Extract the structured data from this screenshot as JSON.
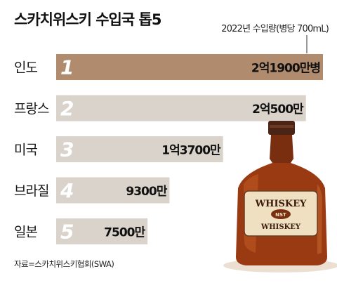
{
  "header": {
    "title": "스카치위스키 수입국 톱5",
    "subtitle": "2022년 수입량(병당 700mL)"
  },
  "source": "자료=스카치위스키협회(SWA)",
  "colors": {
    "highlight_bar": "#b08b6d",
    "default_bar": "#dad3cb",
    "rank_number": "#ffffff",
    "value_text": "#111111",
    "bottle_glass": "#9a3a12",
    "bottle_cap": "#4a2515",
    "label_paper": "#efe0c2"
  },
  "illustration": {
    "label_top": "WHISKEY",
    "label_badge": "NST",
    "label_bottom": "WHISKEY"
  },
  "chart_data": {
    "type": "bar",
    "orientation": "horizontal",
    "title": "스카치위스키 수입국 톱5",
    "subtitle": "2022년 수입량(병당 700mL)",
    "categories": [
      "인도",
      "프랑스",
      "미국",
      "브라질",
      "일본"
    ],
    "ranks": [
      "1",
      "2",
      "3",
      "4",
      "5"
    ],
    "values": [
      219000000,
      205000000,
      137000000,
      93000000,
      75000000
    ],
    "value_labels": [
      "2억1900만병",
      "2억500만",
      "1억3700만",
      "9300만",
      "7500만"
    ],
    "unit": "병",
    "xlim": [
      0,
      219000000
    ],
    "grid": false,
    "legend": "none"
  }
}
